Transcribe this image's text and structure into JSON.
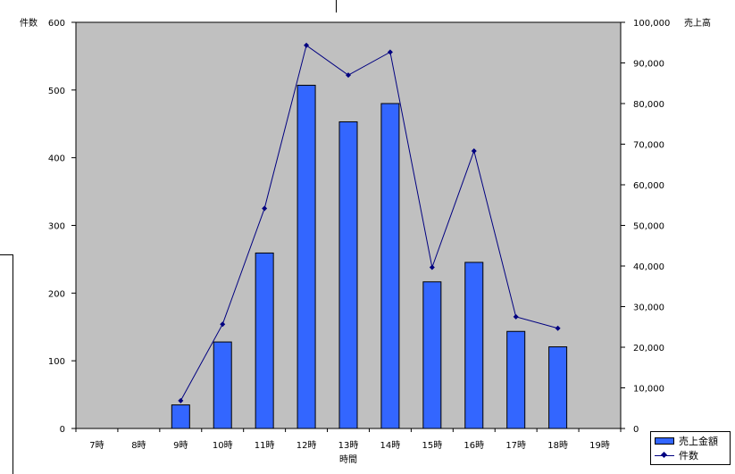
{
  "chart_data": {
    "type": "bar",
    "categories": [
      "7時",
      "8時",
      "9時",
      "10時",
      "11時",
      "12時",
      "13時",
      "14時",
      "15時",
      "16時",
      "17時",
      "18時",
      "19時"
    ],
    "xlabel": "時間",
    "left_axis": {
      "label": "件数",
      "range": [
        0,
        600
      ],
      "ticks": [
        0,
        100,
        200,
        300,
        400,
        500,
        600
      ]
    },
    "right_axis": {
      "label": "売上高",
      "range": [
        0,
        100000
      ],
      "ticks": [
        "0",
        "10,000",
        "20,000",
        "30,000",
        "40,000",
        "50,000",
        "60,000",
        "70,000",
        "80,000",
        "90,000",
        "100,000"
      ]
    },
    "series": [
      {
        "name": "売上金額",
        "type": "bar",
        "axis": "right",
        "color": "#3366ff",
        "values": [
          null,
          null,
          5800,
          21300,
          43200,
          84500,
          75500,
          80000,
          36100,
          40900,
          23900,
          20100,
          null
        ]
      },
      {
        "name": "件数",
        "type": "line",
        "axis": "left",
        "color": "#000080",
        "values": [
          null,
          null,
          41,
          154,
          325,
          566,
          522,
          556,
          238,
          410,
          165,
          148,
          null
        ]
      }
    ],
    "plot_background": "#c0c0c0",
    "legend_position": "bottom-right"
  }
}
